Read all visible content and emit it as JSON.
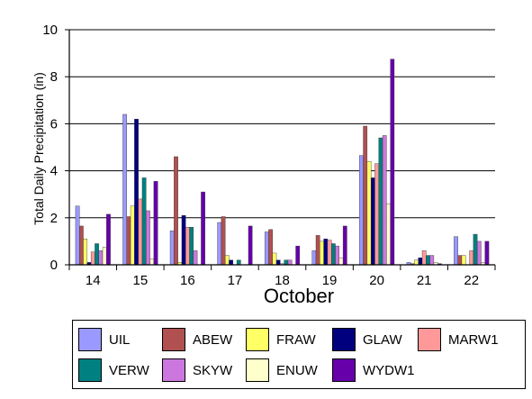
{
  "chart_data": {
    "type": "bar",
    "xlabel": "October",
    "ylabel": "Total Daily Precipitation (in)",
    "ylim": [
      0,
      10
    ],
    "yticks": [
      "0",
      "2",
      "4",
      "6",
      "8",
      "10"
    ],
    "categories": [
      "14",
      "15",
      "16",
      "17",
      "18",
      "19",
      "20",
      "21",
      "22"
    ],
    "grid": "horizontal",
    "legend_position": "bottom",
    "series": [
      {
        "name": "UIL",
        "color": "#9999FF",
        "values": [
          2.5,
          6.4,
          1.45,
          1.8,
          1.4,
          0.6,
          4.65,
          0.1,
          1.2
        ]
      },
      {
        "name": "ABEW",
        "color": "#B05050",
        "values": [
          1.65,
          2.05,
          4.6,
          2.05,
          1.5,
          1.25,
          5.9,
          0.05,
          0.4
        ]
      },
      {
        "name": "FRAW",
        "color": "#FFFF66",
        "values": [
          1.1,
          2.5,
          0.1,
          0.4,
          0.5,
          1.0,
          4.4,
          0.2,
          0.4
        ]
      },
      {
        "name": "GLAW",
        "color": "#00007F",
        "values": [
          0.1,
          6.2,
          2.1,
          0.2,
          0.2,
          1.1,
          3.7,
          0.3,
          0.0
        ]
      },
      {
        "name": "MARW1",
        "color": "#FF9999",
        "values": [
          0.55,
          2.8,
          1.6,
          0.0,
          0.05,
          1.05,
          4.3,
          0.6,
          0.6
        ]
      },
      {
        "name": "VERW",
        "color": "#008080",
        "values": [
          0.9,
          3.7,
          1.6,
          0.2,
          0.2,
          0.9,
          5.4,
          0.4,
          1.3
        ]
      },
      {
        "name": "SKYW",
        "color": "#CC77DD",
        "values": [
          0.6,
          2.3,
          0.6,
          0.0,
          0.2,
          0.8,
          5.5,
          0.4,
          1.0
        ]
      },
      {
        "name": "ENUW",
        "color": "#FFFFCC",
        "values": [
          0.75,
          0.25,
          0.0,
          0.0,
          0.0,
          0.3,
          2.6,
          0.1,
          0.1
        ]
      },
      {
        "name": "WYDW1",
        "color": "#6600AA",
        "values": [
          2.15,
          3.55,
          3.1,
          1.65,
          0.8,
          1.65,
          8.75,
          0.05,
          1.0
        ]
      }
    ]
  }
}
